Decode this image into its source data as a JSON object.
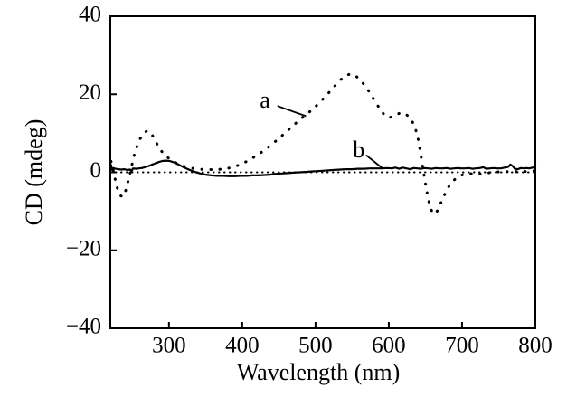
{
  "figure": {
    "background": "#ffffff",
    "ink_color": "#000000"
  },
  "chart_data": {
    "type": "line",
    "title": "",
    "xlabel": "Wavelength (nm)",
    "ylabel": "CD (mdeg)",
    "xlim": [
      220,
      800
    ],
    "ylim": [
      -40,
      40
    ],
    "grid": false,
    "legend_position": "none",
    "x_ticks": [
      {
        "value": 300,
        "label": "300",
        "tick": true
      },
      {
        "value": 400,
        "label": "400",
        "tick": true
      },
      {
        "value": 500,
        "label": "500",
        "tick": true
      },
      {
        "value": 600,
        "label": "600",
        "tick": true
      },
      {
        "value": 700,
        "label": "700",
        "tick": true
      },
      {
        "value": 800,
        "label": "800",
        "tick": false
      }
    ],
    "y_ticks": [
      {
        "value": 40,
        "label": "40",
        "tick": false
      },
      {
        "value": 20,
        "label": "20",
        "tick": true
      },
      {
        "value": 0,
        "label": "0",
        "tick": true
      },
      {
        "value": -20,
        "label": "−20",
        "tick": true
      },
      {
        "value": -40,
        "label": "−40",
        "tick": false
      }
    ],
    "baseline": {
      "y": 0,
      "style": "dotted-fine"
    },
    "series": [
      {
        "name": "a",
        "style": "dotted",
        "points": [
          [
            221,
            2.8
          ],
          [
            223,
            1.5
          ],
          [
            225,
            -0.5
          ],
          [
            228,
            -3.0
          ],
          [
            231,
            -5.0
          ],
          [
            234,
            -6.0
          ],
          [
            237,
            -6.3
          ],
          [
            240,
            -5.3
          ],
          [
            243,
            -3.2
          ],
          [
            246,
            -1.0
          ],
          [
            249,
            1.5
          ],
          [
            252,
            4.0
          ],
          [
            255,
            6.0
          ],
          [
            258,
            7.5
          ],
          [
            261,
            8.7
          ],
          [
            264,
            9.6
          ],
          [
            267,
            10.2
          ],
          [
            270,
            10.6
          ],
          [
            273,
            10.5
          ],
          [
            277,
            9.6
          ],
          [
            281,
            8.2
          ],
          [
            285,
            6.8
          ],
          [
            289,
            5.6
          ],
          [
            294,
            4.5
          ],
          [
            299,
            3.7
          ],
          [
            305,
            2.9
          ],
          [
            311,
            2.3
          ],
          [
            318,
            1.7
          ],
          [
            325,
            1.3
          ],
          [
            333,
            1.0
          ],
          [
            342,
            0.8
          ],
          [
            352,
            0.7
          ],
          [
            362,
            0.7
          ],
          [
            372,
            0.8
          ],
          [
            382,
            1.1
          ],
          [
            392,
            1.6
          ],
          [
            402,
            2.4
          ],
          [
            412,
            3.4
          ],
          [
            422,
            4.6
          ],
          [
            432,
            5.9
          ],
          [
            442,
            7.4
          ],
          [
            452,
            9.0
          ],
          [
            462,
            10.7
          ],
          [
            472,
            12.4
          ],
          [
            482,
            14.0
          ],
          [
            492,
            15.5
          ],
          [
            502,
            17.2
          ],
          [
            512,
            19.1
          ],
          [
            522,
            21.2
          ],
          [
            532,
            23.3
          ],
          [
            540,
            24.7
          ],
          [
            548,
            25.2
          ],
          [
            556,
            24.5
          ],
          [
            564,
            23.0
          ],
          [
            572,
            21.0
          ],
          [
            580,
            18.6
          ],
          [
            588,
            16.2
          ],
          [
            595,
            14.4
          ],
          [
            601,
            14.0
          ],
          [
            608,
            14.5
          ],
          [
            615,
            15.2
          ],
          [
            622,
            15.1
          ],
          [
            629,
            14.0
          ],
          [
            635,
            12.0
          ],
          [
            639,
            9.5
          ],
          [
            642,
            6.5
          ],
          [
            645,
            3.0
          ],
          [
            648,
            -0.5
          ],
          [
            651,
            -4.0
          ],
          [
            654,
            -7.0
          ],
          [
            657,
            -9.3
          ],
          [
            661,
            -10.7
          ],
          [
            665,
            -10.3
          ],
          [
            669,
            -8.8
          ],
          [
            673,
            -7.0
          ],
          [
            678,
            -5.0
          ],
          [
            683,
            -3.3
          ],
          [
            689,
            -2.0
          ],
          [
            695,
            -1.1
          ],
          [
            701,
            -0.6
          ],
          [
            708,
            -0.3
          ],
          [
            715,
            -0.4
          ],
          [
            722,
            -0.5
          ],
          [
            730,
            -0.3
          ],
          [
            738,
            -0.1
          ],
          [
            748,
            0.1
          ],
          [
            758,
            0.2
          ],
          [
            768,
            0.1
          ],
          [
            778,
            0.2
          ],
          [
            788,
            0.2
          ],
          [
            800,
            0.4
          ]
        ]
      },
      {
        "name": "b",
        "style": "solid",
        "points": [
          [
            221,
            1.9
          ],
          [
            222,
            0.6
          ],
          [
            224,
            1.1
          ],
          [
            227,
            0.9
          ],
          [
            231,
            0.8
          ],
          [
            235,
            0.7
          ],
          [
            239,
            0.8
          ],
          [
            243,
            0.6
          ],
          [
            247,
            0.7
          ],
          [
            249,
            0.3
          ],
          [
            251,
            1.0
          ],
          [
            255,
            0.9
          ],
          [
            259,
            1.0
          ],
          [
            263,
            1.1
          ],
          [
            267,
            1.3
          ],
          [
            271,
            1.5
          ],
          [
            275,
            1.8
          ],
          [
            279,
            2.1
          ],
          [
            283,
            2.4
          ],
          [
            287,
            2.7
          ],
          [
            291,
            2.9
          ],
          [
            296,
            3.0
          ],
          [
            301,
            2.9
          ],
          [
            306,
            2.6
          ],
          [
            311,
            2.2
          ],
          [
            316,
            1.7
          ],
          [
            321,
            1.2
          ],
          [
            326,
            0.8
          ],
          [
            331,
            0.4
          ],
          [
            337,
            0.0
          ],
          [
            343,
            -0.3
          ],
          [
            350,
            -0.6
          ],
          [
            358,
            -0.8
          ],
          [
            366,
            -0.9
          ],
          [
            374,
            -0.9
          ],
          [
            382,
            -1.0
          ],
          [
            390,
            -1.0
          ],
          [
            398,
            -0.9
          ],
          [
            406,
            -0.9
          ],
          [
            414,
            -0.8
          ],
          [
            422,
            -0.8
          ],
          [
            430,
            -0.7
          ],
          [
            438,
            -0.6
          ],
          [
            446,
            -0.4
          ],
          [
            454,
            -0.3
          ],
          [
            462,
            -0.2
          ],
          [
            470,
            -0.1
          ],
          [
            478,
            0.0
          ],
          [
            486,
            0.1
          ],
          [
            494,
            0.2
          ],
          [
            502,
            0.3
          ],
          [
            510,
            0.4
          ],
          [
            518,
            0.5
          ],
          [
            526,
            0.6
          ],
          [
            534,
            0.7
          ],
          [
            542,
            0.8
          ],
          [
            550,
            0.8
          ],
          [
            558,
            0.9
          ],
          [
            566,
            0.9
          ],
          [
            574,
            1.0
          ],
          [
            582,
            1.0
          ],
          [
            590,
            1.0
          ],
          [
            598,
            1.1
          ],
          [
            604,
            1.0
          ],
          [
            609,
            1.2
          ],
          [
            614,
            0.9
          ],
          [
            619,
            1.2
          ],
          [
            624,
            1.0
          ],
          [
            629,
            0.8
          ],
          [
            634,
            1.1
          ],
          [
            639,
            1.0
          ],
          [
            644,
            0.9
          ],
          [
            649,
            1.1
          ],
          [
            654,
            1.0
          ],
          [
            659,
            0.9
          ],
          [
            664,
            1.1
          ],
          [
            669,
            1.0
          ],
          [
            674,
            1.0
          ],
          [
            679,
            1.1
          ],
          [
            684,
            0.9
          ],
          [
            689,
            1.0
          ],
          [
            694,
            1.1
          ],
          [
            699,
            1.0
          ],
          [
            704,
            1.0
          ],
          [
            709,
            1.1
          ],
          [
            714,
            0.9
          ],
          [
            719,
            1.0
          ],
          [
            724,
            1.1
          ],
          [
            729,
            1.3
          ],
          [
            733,
            0.9
          ],
          [
            738,
            1.0
          ],
          [
            743,
            1.1
          ],
          [
            748,
            1.0
          ],
          [
            753,
            1.0
          ],
          [
            758,
            1.2
          ],
          [
            763,
            1.4
          ],
          [
            766,
            2.0
          ],
          [
            769,
            1.6
          ],
          [
            772,
            0.9
          ],
          [
            776,
            0.8
          ],
          [
            780,
            1.1
          ],
          [
            784,
            1.0
          ],
          [
            788,
            1.1
          ],
          [
            792,
            1.0
          ],
          [
            796,
            1.2
          ],
          [
            800,
            1.3
          ]
        ]
      }
    ],
    "annotations": [
      {
        "text": "a",
        "text_x": 431,
        "text_y": 18.0,
        "leader": [
          [
            448,
            17.0
          ],
          [
            487,
            14.4
          ]
        ]
      },
      {
        "text": "b",
        "text_x": 559,
        "text_y": 5.2,
        "leader": [
          [
            569,
            4.4
          ],
          [
            591,
            1.1
          ]
        ]
      }
    ]
  }
}
